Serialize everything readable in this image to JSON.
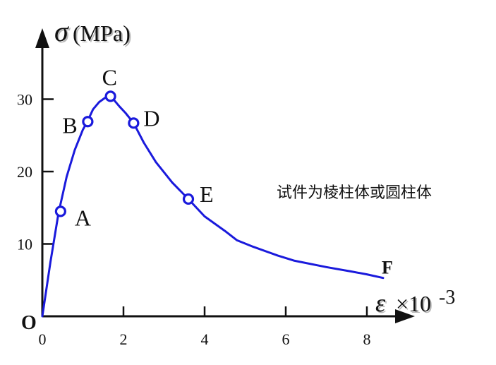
{
  "chart_data": {
    "type": "line",
    "ylabel_symbol": "σ",
    "ylabel_unit": "(MPa)",
    "xlabel_symbol": "ε",
    "xlabel_multiplier": "×10",
    "xlabel_exponent": "-3",
    "origin_label": "O",
    "annotation": "试件为棱柱体或圆柱体",
    "xlim": [
      0,
      8.7
    ],
    "ylim": [
      0,
      39
    ],
    "x_ticks": [
      0,
      2,
      4,
      6,
      8
    ],
    "y_ticks": [
      10,
      20,
      30
    ],
    "x_tick_labels": [
      "0",
      "2",
      "4",
      "6",
      "8"
    ],
    "y_tick_labels": [
      "10",
      "20",
      "30"
    ],
    "curve_color": "#1a1adc",
    "series": [
      {
        "x": [
          0,
          0.2,
          0.4,
          0.6,
          0.8,
          1.0,
          1.1,
          1.25,
          1.4,
          1.55,
          1.65,
          1.75,
          1.9,
          2.05,
          2.25,
          2.5,
          2.8,
          3.2,
          3.6,
          4.0,
          4.5,
          4.8,
          5.2,
          5.8,
          6.2,
          7.0,
          7.6,
          8.0,
          8.4
        ],
        "y": [
          0,
          7.5,
          14.3,
          19.3,
          23.0,
          25.8,
          26.8,
          28.6,
          29.6,
          30.2,
          30.4,
          30.0,
          29.0,
          28.1,
          26.7,
          24.0,
          21.3,
          18.5,
          16.2,
          13.8,
          11.8,
          10.5,
          9.6,
          8.4,
          7.7,
          6.8,
          6.2,
          5.8,
          5.3
        ]
      }
    ],
    "points": [
      {
        "label": "A",
        "x": 0.45,
        "y": 14.5
      },
      {
        "label": "B",
        "x": 1.12,
        "y": 26.9
      },
      {
        "label": "C",
        "x": 1.68,
        "y": 30.4
      },
      {
        "label": "D",
        "x": 2.25,
        "y": 26.7
      },
      {
        "label": "E",
        "x": 3.6,
        "y": 16.2
      }
    ],
    "end_label": {
      "label": "F",
      "x": 8.4,
      "y": 5.3
    }
  }
}
